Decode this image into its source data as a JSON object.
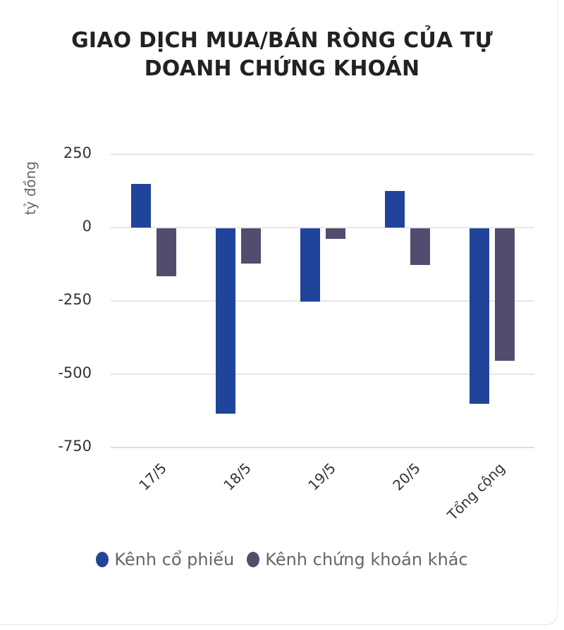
{
  "title_line1": "GIAO DỊCH MUA/BÁN RÒNG CỦA TỰ",
  "title_line2": "DOANH CHỨNG KHOÁN",
  "y_axis_label": "tỷ đồng",
  "y_ticks": [
    "250",
    "0",
    "-250",
    "-500",
    "-750"
  ],
  "x_labels": [
    "17/5",
    "18/5",
    "19/5",
    "20/5",
    "Tổng cộng"
  ],
  "legend": [
    {
      "label": "Kênh cổ phiếu",
      "color": "#20449a"
    },
    {
      "label": "Kênh chứng khoán khác",
      "color": "#524d6e"
    }
  ],
  "chart_data": {
    "type": "bar",
    "title": "GIAO DỊCH MUA/BÁN RÒNG CỦA TỰ DOANH CHỨNG KHOÁN",
    "xlabel": "",
    "ylabel": "tỷ đồng",
    "categories": [
      "17/5",
      "18/5",
      "19/5",
      "20/5",
      "Tổng cộng"
    ],
    "series": [
      {
        "name": "Kênh cổ phiếu",
        "color": "#20449a",
        "values": [
          150,
          -632,
          -249,
          126,
          -598
        ]
      },
      {
        "name": "Kênh chứng khoán khác",
        "color": "#524d6e",
        "values": [
          -164,
          -120,
          -37,
          -126,
          -451
        ]
      }
    ],
    "ylim": [
      -750,
      250
    ],
    "yticks": [
      250,
      0,
      -250,
      -500,
      -750
    ],
    "grid": true,
    "legend_position": "bottom"
  }
}
